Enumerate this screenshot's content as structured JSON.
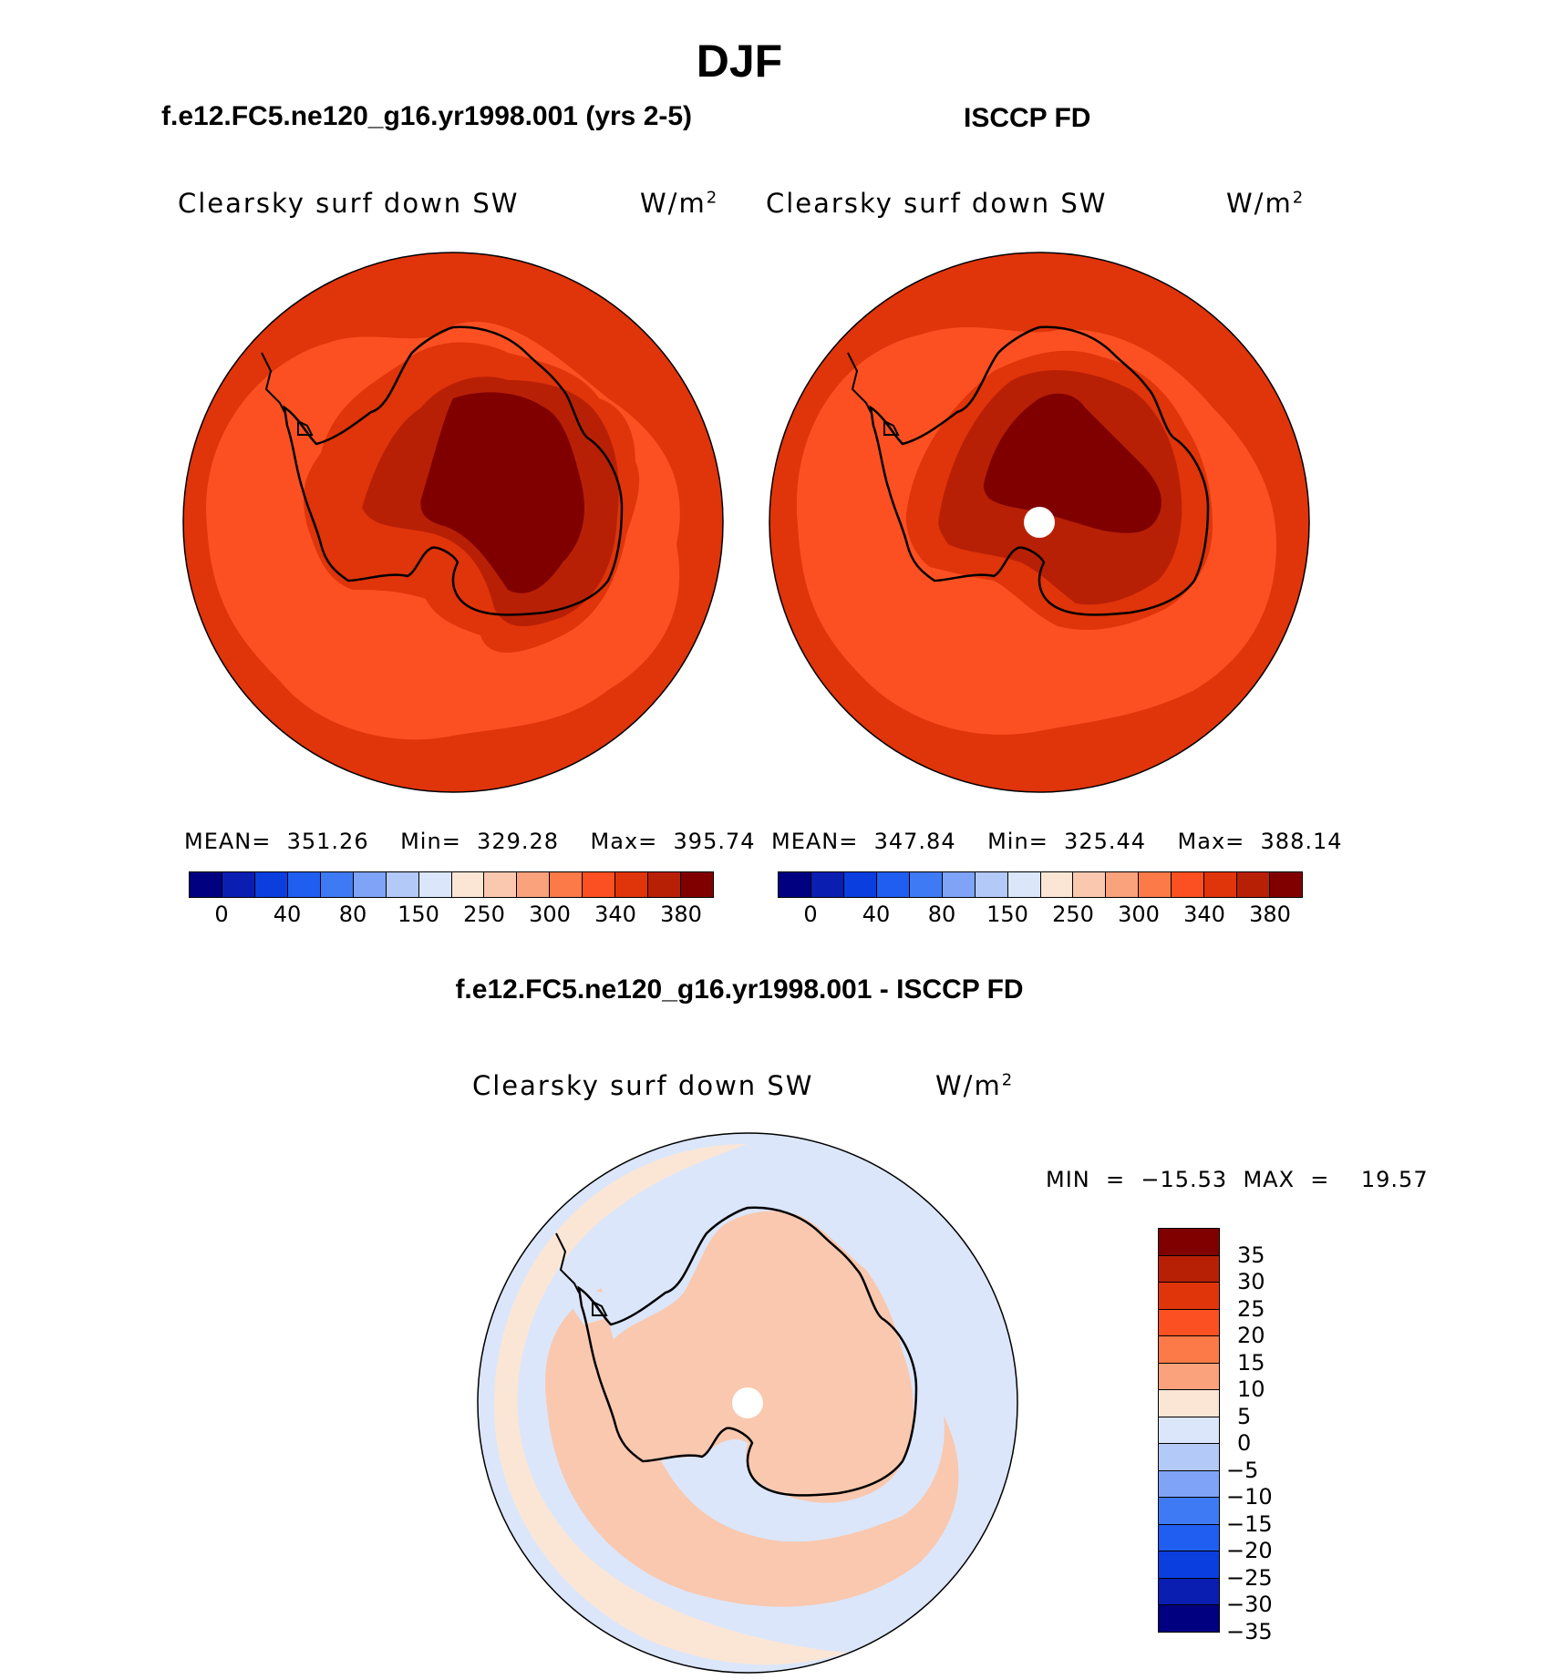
{
  "figure": {
    "season": "DJF",
    "left_title": "f.e12.FC5.ne120_g16.yr1998.001 (yrs 2-5)",
    "right_title": "ISCCP FD",
    "diff_title": "f.e12.FC5.ne120_g16.yr1998.001 - ISCCP FD"
  },
  "panels": {
    "model": {
      "variable": "Clearsky surf down SW",
      "units_base": "W/m",
      "units_exp": "2",
      "stats": "MEAN=  351.26    Min=  329.28    Max=  395.74"
    },
    "obs": {
      "variable": "Clearsky surf down SW",
      "units_base": "W/m",
      "units_exp": "2",
      "stats": "MEAN=  347.84    Min=  325.44    Max=  388.14"
    },
    "diff": {
      "variable": "Clearsky surf down SW",
      "units_base": "W/m",
      "units_exp": "2",
      "stats": "MIN  =  −15.53  MAX  =    19.57"
    }
  },
  "abs_colorbar": {
    "colors": [
      "#000080",
      "#0a1eb2",
      "#0a3ede",
      "#1f5ef0",
      "#3f7af5",
      "#7ea3f7",
      "#b3c9f7",
      "#dbe6fa",
      "#fbe6d6",
      "#f9c8ae",
      "#f9a27c",
      "#fb7a48",
      "#fc5022",
      "#e0340a",
      "#b82006",
      "#800000"
    ],
    "labels": [
      "0",
      "40",
      "80",
      "150",
      "250",
      "300",
      "340",
      "380"
    ]
  },
  "diff_colorbar": {
    "colors": [
      "#800000",
      "#b82006",
      "#e0340a",
      "#fc5022",
      "#fb7a48",
      "#f9a27c",
      "#fbe6d6",
      "#dbe6fa",
      "#b3c9f7",
      "#7ea3f7",
      "#3f7af5",
      "#1f5ef0",
      "#0a3ede",
      "#0a1eb2",
      "#000080"
    ],
    "colors_note_display": "",
    "labels": [
      "35",
      "30",
      "25",
      "20",
      "15",
      "10",
      "5",
      "0",
      "−5",
      "−10",
      "−15",
      "−20",
      "−25",
      "−30",
      "−35"
    ]
  },
  "map_colors": {
    "ocean_outer": "#e0340a",
    "ocean_mid": "#fc5022",
    "coast_band": "#e0340a",
    "ice_mid": "#b82006",
    "ice_core": "#800000",
    "diff_bg": "#fbe6d6",
    "diff_pos": "#f9c8ae",
    "diff_neg": "#dbe6fa",
    "diff_neg2": "#b3c9f7",
    "coastline": "#000000"
  }
}
